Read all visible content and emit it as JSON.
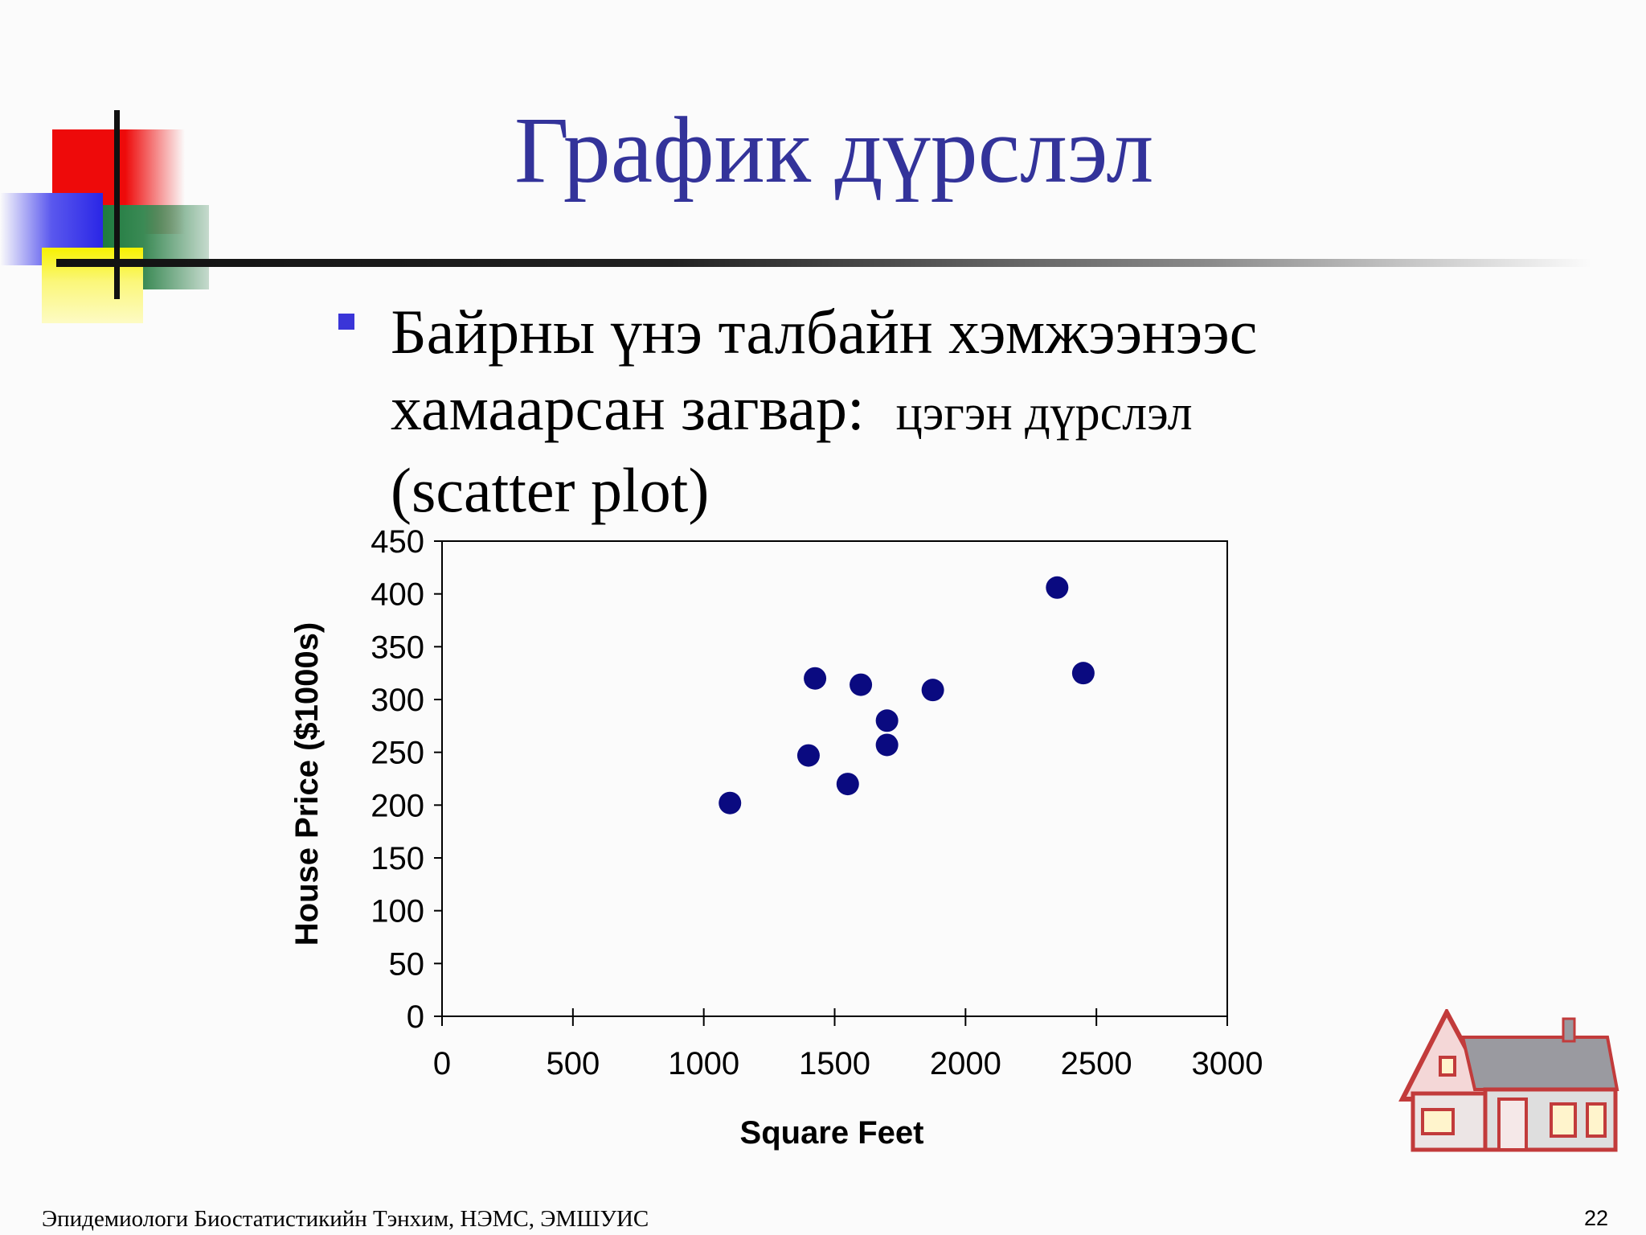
{
  "slide": {
    "title": "График дүрслэл",
    "bullet": {
      "line1": "Байрны үнэ талбайн хэмжээнээс",
      "line2_main": "хамаарсан загвар:",
      "line2_small": "цэгэн дүрслэл",
      "line3": "(scatter plot)"
    },
    "footer": "Эпидемиологи Биостатистикийн Тэнхим, НЭМС, ЭМШУИС",
    "page_number": "22",
    "title_color": "#33339a",
    "bullet_color": "#3a35d8",
    "point_color": "#0a0a80"
  },
  "chart_data": {
    "type": "scatter",
    "title": "",
    "xlabel": "Square Feet",
    "ylabel": "House Price ($1000s)",
    "xlim": [
      0,
      3000
    ],
    "ylim": [
      0,
      450
    ],
    "xticks": [
      0,
      500,
      1000,
      1500,
      2000,
      2500,
      3000
    ],
    "yticks": [
      0,
      50,
      100,
      150,
      200,
      250,
      300,
      350,
      400,
      450
    ],
    "grid": false,
    "legend": "none",
    "series": [
      {
        "points": [
          {
            "x": 1100,
            "y": 202
          },
          {
            "x": 1400,
            "y": 247
          },
          {
            "x": 1425,
            "y": 320
          },
          {
            "x": 1550,
            "y": 220
          },
          {
            "x": 1600,
            "y": 314
          },
          {
            "x": 1700,
            "y": 280
          },
          {
            "x": 1700,
            "y": 257
          },
          {
            "x": 1875,
            "y": 309
          },
          {
            "x": 2350,
            "y": 406
          },
          {
            "x": 2450,
            "y": 325
          }
        ]
      }
    ]
  }
}
